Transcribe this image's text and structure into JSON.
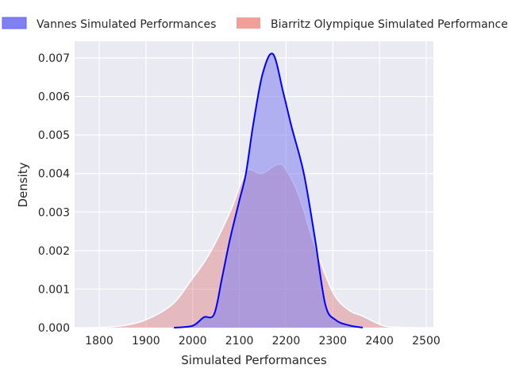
{
  "chart_data": {
    "type": "area",
    "title": "",
    "xlabel": "Simulated Performances",
    "ylabel": "Density",
    "xlim": [
      1750,
      2515
    ],
    "ylim": [
      0,
      0.00743
    ],
    "xticks": [
      1800,
      1900,
      2000,
      2100,
      2200,
      2300,
      2400,
      2500
    ],
    "xtick_labels": [
      "1800",
      "1900",
      "2000",
      "2100",
      "2200",
      "2300",
      "2400",
      "2500"
    ],
    "yticks": [
      0,
      0.001,
      0.002,
      0.003,
      0.004,
      0.005,
      0.006,
      0.007
    ],
    "ytick_labels": [
      "0.000",
      "0.001",
      "0.002",
      "0.003",
      "0.004",
      "0.005",
      "0.006",
      "0.007"
    ],
    "grid": true,
    "legend_placement": "top",
    "series": [
      {
        "name": "Biarritz Olympique Simulated Performances",
        "fill": "#e08080",
        "legend_color": "#f0a098",
        "line": "#ffffff",
        "x": [
          1780,
          1843,
          1899,
          1956,
          1995,
          2035,
          2080,
          2105,
          2120,
          2148,
          2182,
          2200,
          2228,
          2262,
          2301,
          2335,
          2364,
          2408,
          2445,
          2480
        ],
        "y": [
          0,
          4e-05,
          0.0002,
          0.0006,
          0.0012,
          0.0019,
          0.003,
          0.0038,
          0.0041,
          0.004,
          0.00424,
          0.0041,
          0.0034,
          0.0021,
          0.0009,
          0.00045,
          0.0003,
          5e-05,
          1e-05,
          0
        ]
      },
      {
        "name": "Vannes Simulated Performances",
        "fill": "#8080f0",
        "legend_color": "#8080f0",
        "line": "#0000ff",
        "x": [
          1960,
          2000,
          2024,
          2046,
          2063,
          2080,
          2100,
          2114,
          2130,
          2150,
          2172,
          2194,
          2212,
          2238,
          2262,
          2284,
          2306,
          2335,
          2364
        ],
        "y": [
          0,
          5e-05,
          0.00027,
          0.00035,
          0.0013,
          0.0023,
          0.0033,
          0.004,
          0.0053,
          0.0066,
          0.0071,
          0.0061,
          0.0052,
          0.004,
          0.0023,
          0.0006,
          0.0002,
          6e-05,
          0
        ]
      }
    ]
  }
}
